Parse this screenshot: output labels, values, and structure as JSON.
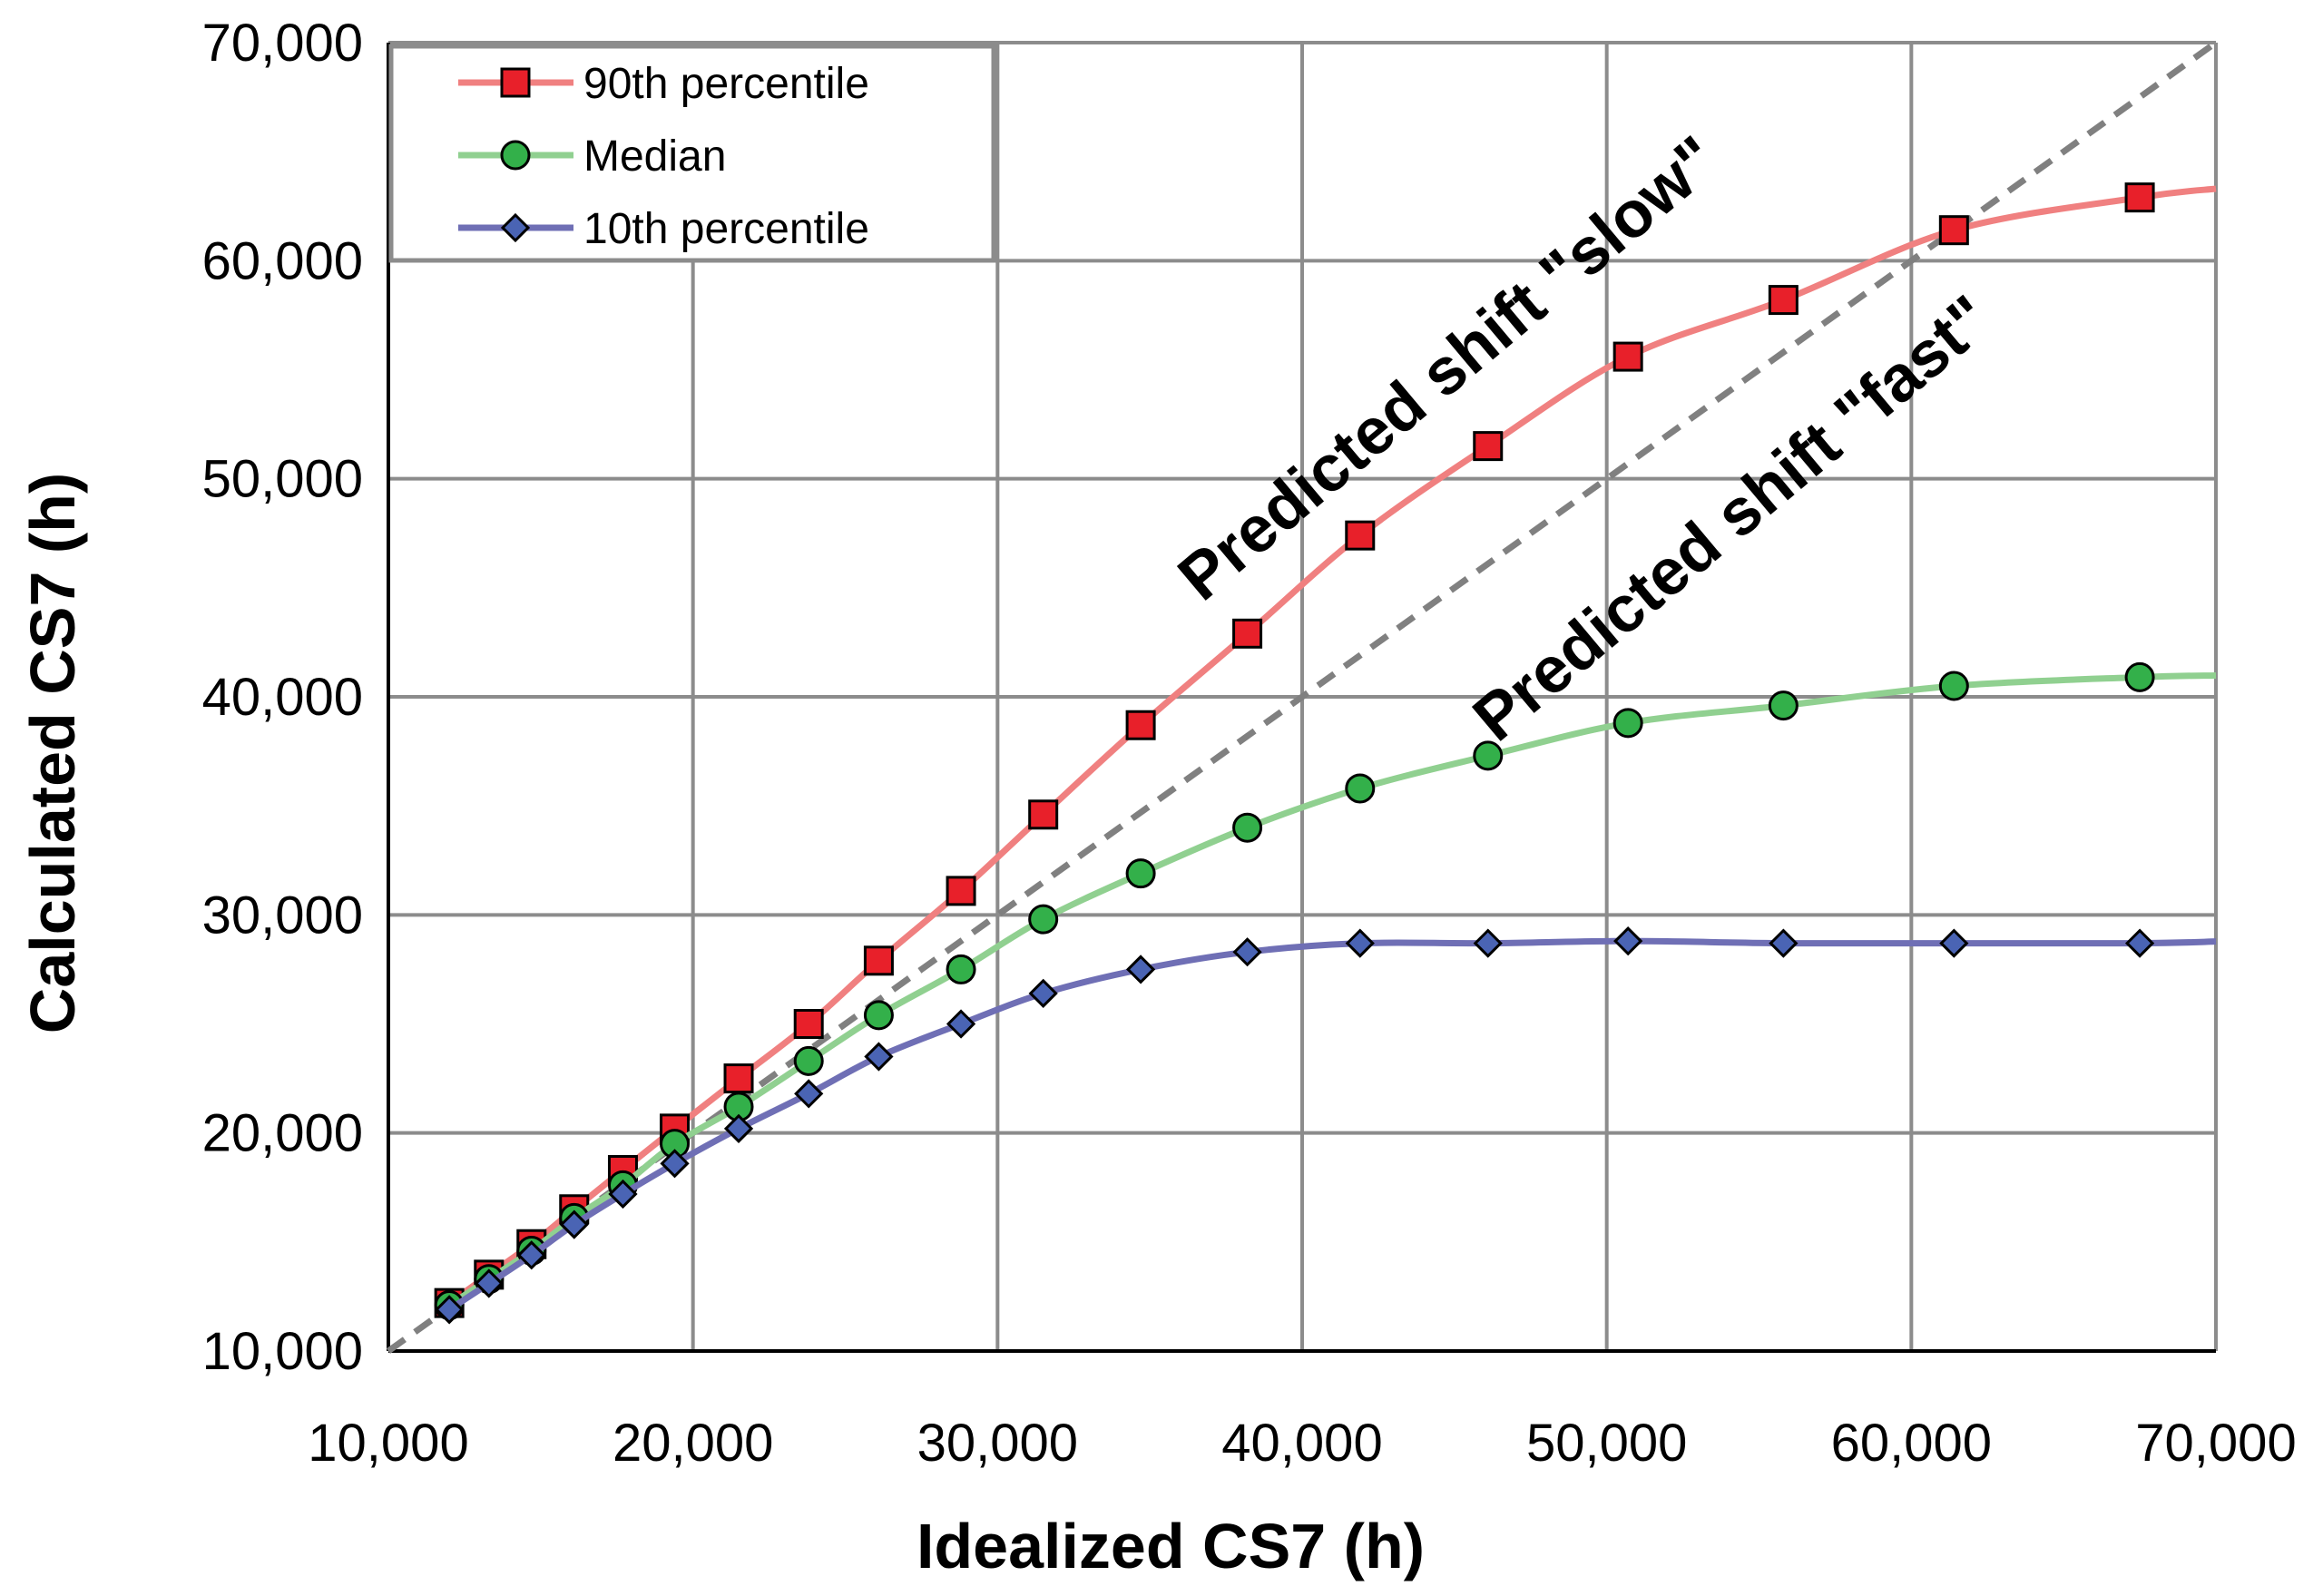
{
  "chart_data": {
    "type": "line",
    "xlabel": "Idealized CS7 (h)",
    "ylabel": "Calculated CS7 (h)",
    "xlim": [
      10000,
      70000
    ],
    "ylim": [
      10000,
      70000
    ],
    "xticks": [
      10000,
      20000,
      30000,
      40000,
      50000,
      60000,
      70000
    ],
    "yticks": [
      10000,
      20000,
      30000,
      40000,
      50000,
      60000,
      70000
    ],
    "xtick_labels": [
      "10,000",
      "20,000",
      "30,000",
      "40,000",
      "50,000",
      "60,000",
      "70,000"
    ],
    "ytick_labels": [
      "10,000",
      "20,000",
      "30,000",
      "40,000",
      "50,000",
      "60,000",
      "70,000"
    ],
    "grid": true,
    "legend_position": "top-left",
    "x": [
      12000,
      13300,
      14700,
      16100,
      17700,
      19400,
      21500,
      23800,
      26100,
      28800,
      31500,
      34700,
      38200,
      41900,
      46100,
      50700,
      55800,
      61400,
      67500
    ],
    "series": [
      {
        "name": "90th percentile",
        "marker": "square",
        "line_color": "#f08080",
        "marker_color": "#e8202a",
        "values": [
          12200,
          13500,
          14900,
          16500,
          18300,
          20200,
          22500,
          25000,
          27900,
          31100,
          34600,
          38700,
          42900,
          47400,
          51500,
          55600,
          58200,
          61400,
          62900
        ]
      },
      {
        "name": "Median",
        "marker": "circle",
        "line_color": "#90d090",
        "marker_color": "#33b04a",
        "values": [
          12100,
          13300,
          14600,
          16100,
          17600,
          19500,
          21200,
          23300,
          25400,
          27500,
          29800,
          31900,
          34000,
          35800,
          37300,
          38800,
          39600,
          40500,
          40900
        ]
      },
      {
        "name": "10th percentile",
        "marker": "diamond",
        "line_color": "#6f6fb5",
        "marker_color": "#4a64b4",
        "values": [
          11900,
          13100,
          14400,
          15800,
          17200,
          18600,
          20200,
          21800,
          23500,
          25000,
          26400,
          27500,
          28300,
          28700,
          28700,
          28800,
          28700,
          28700,
          28700
        ]
      }
    ],
    "reference_line": {
      "style": "dashed",
      "color": "#808080",
      "from": [
        10000,
        10000
      ],
      "to": [
        70000,
        70000
      ]
    },
    "annotations": [
      {
        "text": "Predicted shift \"slow\""
      },
      {
        "text": "Predicted shift \"fast\""
      }
    ]
  }
}
